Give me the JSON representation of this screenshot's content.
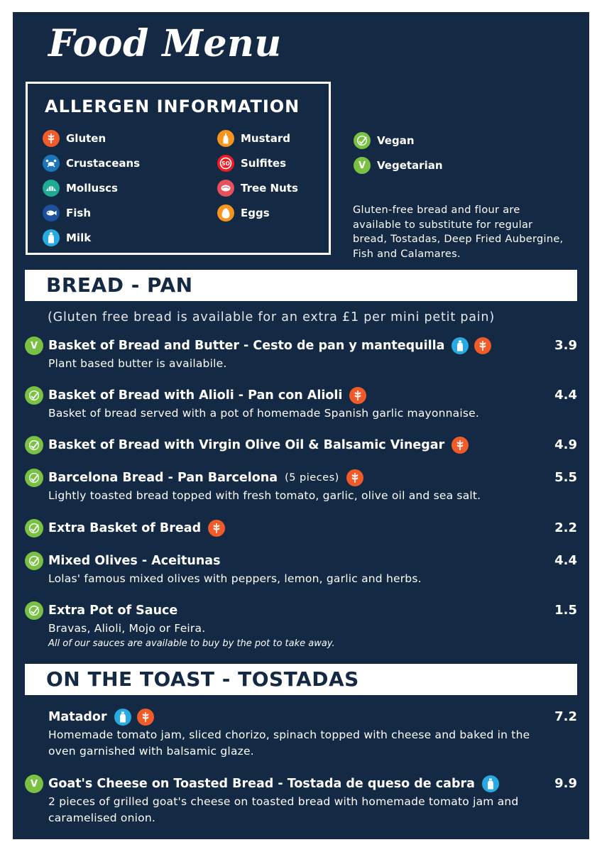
{
  "title": "Food Menu",
  "allergens": {
    "heading": "ALLERGEN INFORMATION",
    "items": [
      {
        "label": "Gluten",
        "icon": "wheat-icon",
        "color": "#f15a29"
      },
      {
        "label": "Crustaceans",
        "icon": "crab-icon",
        "color": "#1b75bb"
      },
      {
        "label": "Molluscs",
        "icon": "shell-icon",
        "color": "#1dab94"
      },
      {
        "label": "Fish",
        "icon": "fish-icon",
        "color": "#1c4f9c"
      },
      {
        "label": "Milk",
        "icon": "milk-bottle-icon",
        "color": "#27aae1"
      },
      {
        "label": "Mustard",
        "icon": "mustard-bottle-icon",
        "color": "#f7941d"
      },
      {
        "label": "Sulfites",
        "icon": "sulfites-icon",
        "color": "#ed1c24"
      },
      {
        "label": "Tree Nuts",
        "icon": "nut-icon",
        "color": "#e8515b"
      },
      {
        "label": "Eggs",
        "icon": "egg-icon",
        "color": "#f7941d"
      }
    ],
    "diet": [
      {
        "label": "Vegan",
        "icon": "vegan-leaf-icon",
        "color": "#7ac143"
      },
      {
        "label": "Vegetarian",
        "icon": "vegetarian-v-icon",
        "color": "#7ac143"
      }
    ],
    "gluten_free_note": "Gluten-free bread and flour are available to substitute for regular bread, Tostadas, Deep Fried Aubergine, Fish and Calamares."
  },
  "bread": {
    "heading": "BREAD - PAN",
    "note": "(Gluten free bread is available for an extra £1 per mini petit pain)",
    "items": [
      {
        "name": "Basket of Bread and Butter - Cesto de pan y mantequilla",
        "desc": "Plant based butter is availabile.",
        "price": "3.9",
        "diet": "vegetarian"
      },
      {
        "name": "Basket of Bread with Alioli - Pan con Alioli",
        "desc": "Basket of bread served with a pot of homemade Spanish garlic mayonnaise.",
        "price": "4.4",
        "diet": "vegan"
      },
      {
        "name": "Basket of Bread with Virgin Olive Oil & Balsamic Vinegar",
        "price": "4.9",
        "diet": "vegan"
      },
      {
        "name": "Barcelona Bread - Pan Barcelona",
        "sub": "(5 pieces)",
        "desc": "Lightly toasted bread topped with fresh tomato, garlic, olive oil and sea salt.",
        "price": "5.5",
        "diet": "vegan"
      },
      {
        "name": "Extra Basket of Bread",
        "price": "2.2",
        "diet": "vegan"
      },
      {
        "name": "Mixed Olives - Aceitunas",
        "desc": "Lolas' famous mixed olives with peppers, lemon, garlic and herbs.",
        "price": "4.4",
        "diet": "vegan"
      },
      {
        "name": "Extra Pot of Sauce",
        "desc": "Bravas, Alioli, Mojo or Feira.",
        "desc2": "All of our sauces are available to buy by the pot to take away.",
        "price": "1.5",
        "diet": "vegan"
      }
    ]
  },
  "tostadas": {
    "heading": "ON THE TOAST - TOSTADAS",
    "items": [
      {
        "name": "Matador",
        "desc": "Homemade tomato jam, sliced chorizo, spinach topped with cheese and baked in the oven garnished with balsamic glaze.",
        "price": "7.2"
      },
      {
        "name": "Goat's Cheese on Toasted Bread - Tostada de queso de cabra",
        "desc": "2 pieces of grilled goat's cheese on toasted bread with homemade tomato jam and caramelised onion.",
        "price": "9.9",
        "diet": "vegetarian"
      }
    ]
  }
}
